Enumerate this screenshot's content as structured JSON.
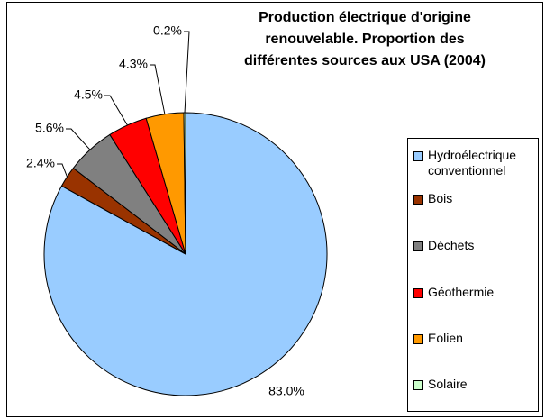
{
  "chart_data": {
    "type": "pie",
    "title": "Production électrique d'origine renouvelable. Proportion des différentes sources aux USA (2004)",
    "series": [
      {
        "name": "Production électrique",
        "categories": [
          "Hydroélectrique conventionnel",
          "Bois",
          "Déchets",
          "Géothermie",
          "Eolien",
          "Solaire"
        ],
        "values": [
          83.0,
          2.4,
          5.6,
          4.5,
          4.3,
          0.2
        ],
        "value_labels": [
          "83.0%",
          "2.4%",
          "5.6%",
          "4.5%",
          "4.3%",
          "0.2%"
        ],
        "colors": [
          "#99ccff",
          "#993300",
          "#808080",
          "#ff0000",
          "#ff9900",
          "#ccffcc"
        ]
      }
    ],
    "legend": "right"
  }
}
